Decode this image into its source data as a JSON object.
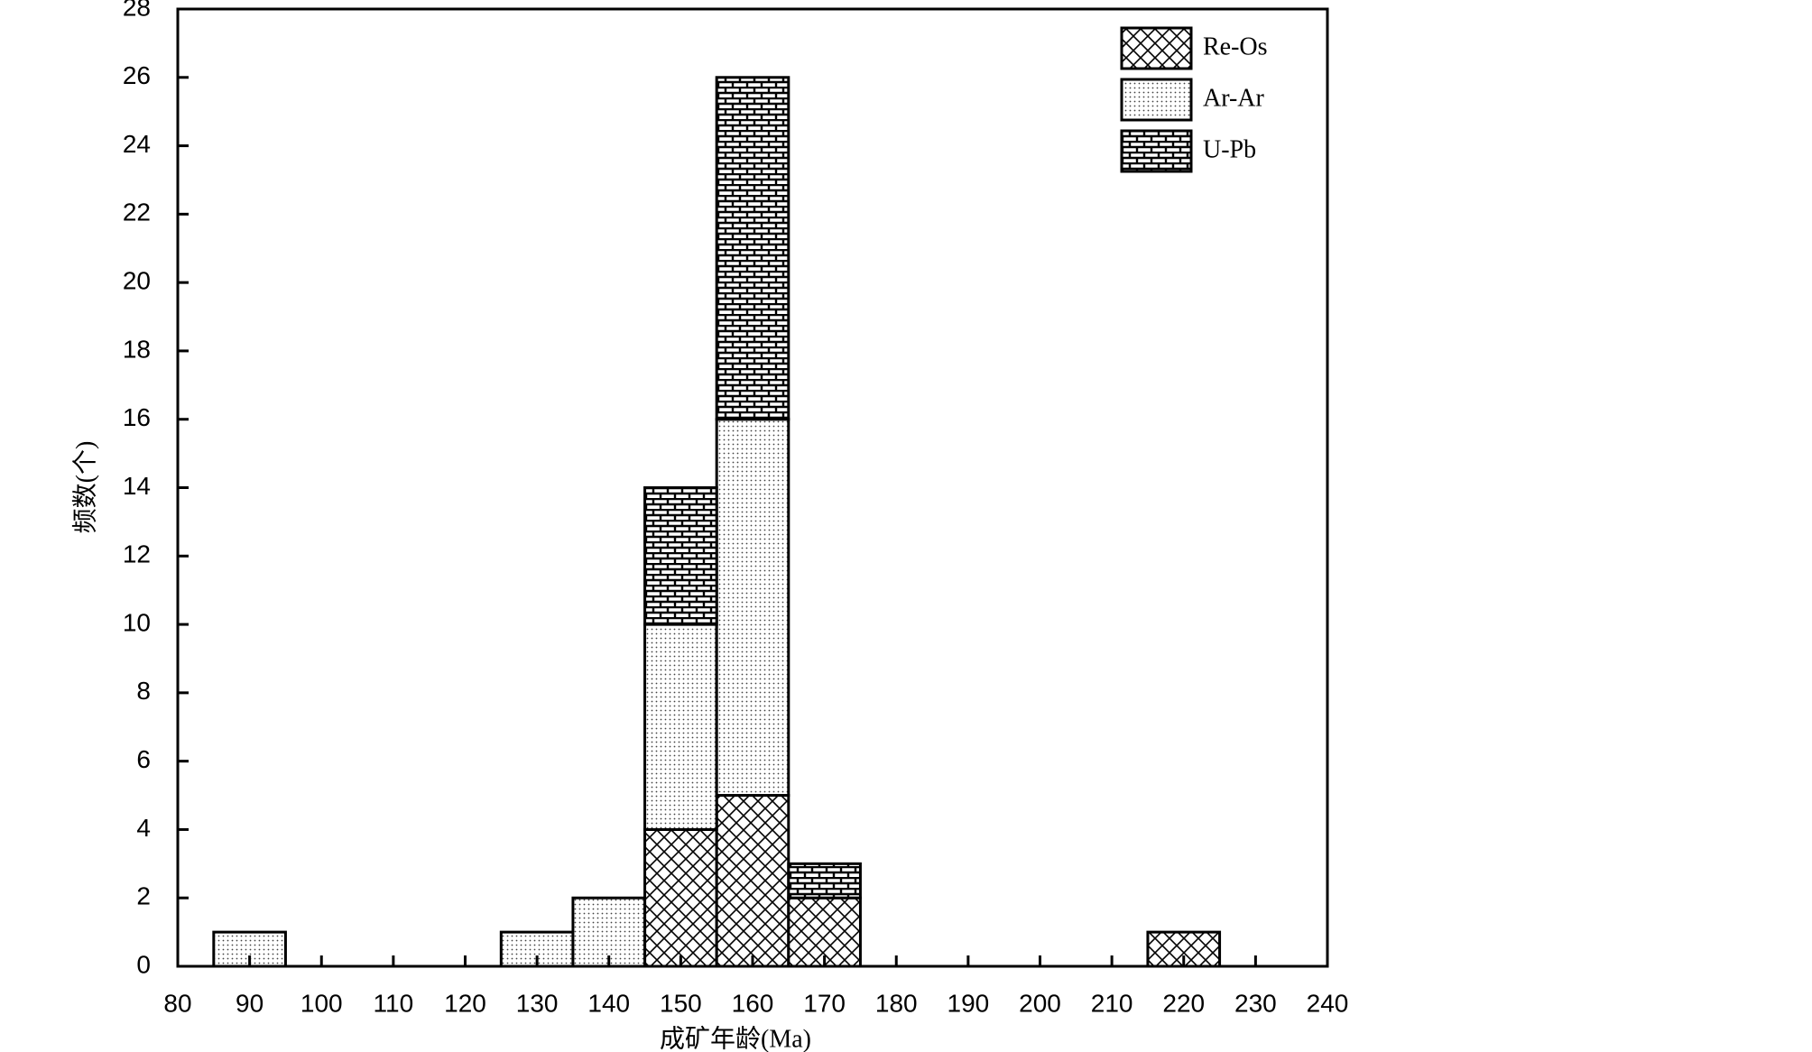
{
  "chart_data": {
    "type": "histogram",
    "xlabel": "成矿年龄(Ma)",
    "ylabel": "频数(个)",
    "bins": [
      85,
      95,
      105,
      115,
      125,
      135,
      145,
      155,
      165,
      175,
      185,
      195,
      205,
      215,
      225
    ],
    "series": [
      {
        "name": "Re-Os",
        "pattern": "crosshatch",
        "values": [
          0,
          0,
          0,
          0,
          0,
          0,
          4,
          5,
          2,
          0,
          0,
          0,
          0,
          1
        ]
      },
      {
        "name": "Ar-Ar",
        "pattern": "dots",
        "values": [
          1,
          0,
          0,
          0,
          1,
          2,
          6,
          11,
          0,
          0,
          0,
          0,
          0,
          0
        ]
      },
      {
        "name": "U-Pb",
        "pattern": "brick",
        "values": [
          0,
          0,
          0,
          0,
          0,
          0,
          4,
          10,
          1,
          0,
          0,
          0,
          0,
          0
        ]
      }
    ],
    "stacked": true,
    "xlim": [
      80,
      240
    ],
    "xticks": [
      80,
      90,
      100,
      110,
      120,
      130,
      140,
      150,
      160,
      170,
      180,
      190,
      200,
      210,
      220,
      230,
      240
    ],
    "ylim": [
      0,
      28
    ],
    "yticks": [
      0,
      2,
      4,
      6,
      8,
      10,
      12,
      14,
      16,
      18,
      20,
      22,
      24,
      26,
      28
    ],
    "legend": "upper right"
  }
}
